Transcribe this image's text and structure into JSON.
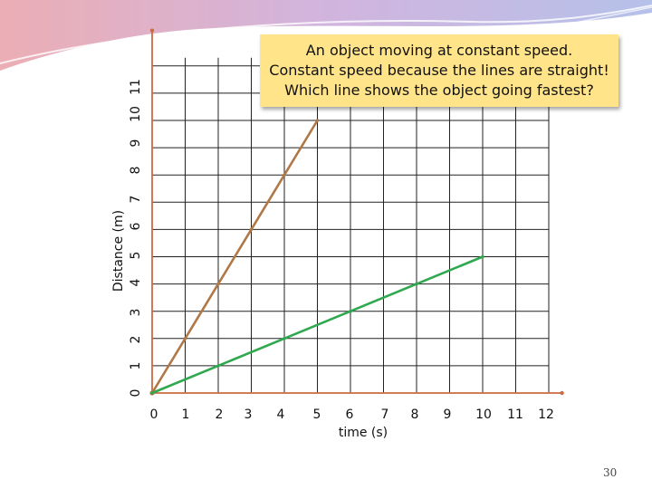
{
  "callout": {
    "line1": "An object moving at constant speed.",
    "line2": "Constant speed because the lines are straight!",
    "line3": "Which line shows the object going fastest?"
  },
  "page_number": "30",
  "colors": {
    "fast_line": "#b07846",
    "slow_line": "#2fa84f",
    "axis": "#cc6a40",
    "grid": "#222222",
    "callout_bg": "#ffe48a"
  },
  "chart_data": {
    "type": "line",
    "title": "",
    "xlabel": "time (s)",
    "ylabel": "Distance (m)",
    "xlim": [
      0,
      12
    ],
    "ylim": [
      0,
      12
    ],
    "x_ticks": [
      "0",
      "1",
      "2",
      "3",
      "4",
      "5",
      "6",
      "7",
      "8",
      "9",
      "10",
      "11",
      "12"
    ],
    "y_ticks": [
      "0",
      "1",
      "2",
      "3",
      "4",
      "5",
      "6",
      "7",
      "8",
      "9",
      "10",
      "11"
    ],
    "grid": true,
    "series": [
      {
        "x": [
          0,
          1,
          2,
          3,
          4,
          5
        ],
        "y": [
          0,
          2,
          4,
          6,
          8,
          10
        ]
      },
      {
        "x": [
          0,
          2,
          4,
          6,
          8,
          10
        ],
        "y": [
          0,
          1,
          2,
          3,
          4,
          5
        ]
      }
    ]
  }
}
